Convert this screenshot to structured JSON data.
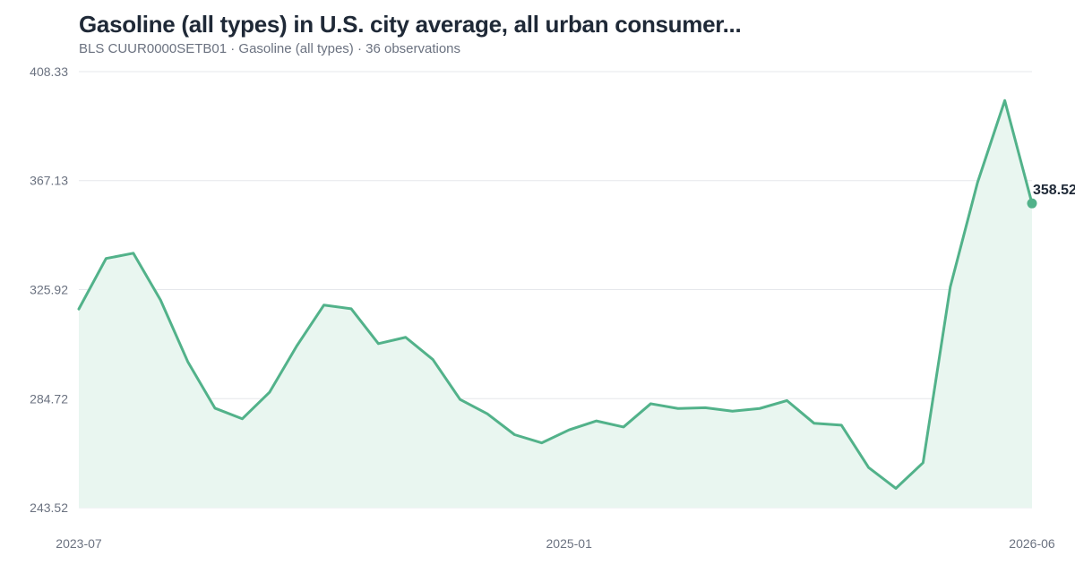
{
  "header": {
    "title": "Gasoline (all types) in U.S. city average, all urban consumer...",
    "subtitle": "BLS CUUR0000SETB01 · Gasoline (all types) · 36 observations"
  },
  "colors": {
    "line": "#52b28a",
    "area": "#e9f6f0",
    "grid": "#e5e7eb",
    "text": "#1f2937",
    "muted": "#6b7280"
  },
  "chart_data": {
    "type": "area",
    "title": "Gasoline (all types) in U.S. city average, all urban consumer...",
    "subtitle": "BLS CUUR0000SETB01 · Gasoline (all types) · 36 observations",
    "xlabel": "",
    "ylabel": "",
    "x": [
      "2023-07",
      "2023-08",
      "2023-09",
      "2023-10",
      "2023-11",
      "2023-12",
      "2024-01",
      "2024-02",
      "2024-03",
      "2024-04",
      "2024-05",
      "2024-06",
      "2024-07",
      "2024-08",
      "2024-09",
      "2024-10",
      "2024-11",
      "2024-12",
      "2025-01",
      "2025-02",
      "2025-03",
      "2025-04",
      "2025-05",
      "2025-06",
      "2025-07",
      "2025-08",
      "2025-09",
      "2025-10",
      "2025-11",
      "2025-12",
      "2026-01",
      "2026-02",
      "2026-03",
      "2026-04",
      "2026-05",
      "2026-06"
    ],
    "series": [
      {
        "values": [
          318.6,
          337.7,
          339.7,
          322.0,
          298.7,
          281.1,
          277.1,
          287.1,
          304.6,
          320.1,
          318.7,
          305.5,
          307.9,
          299.5,
          284.4,
          279.0,
          271.1,
          268.0,
          272.9,
          276.3,
          274.0,
          282.8,
          281.0,
          281.3,
          280.0,
          281.0,
          284.0,
          275.4,
          274.7,
          258.7,
          250.8,
          260.5,
          327.0,
          366.4,
          397.4,
          358.52
        ]
      }
    ],
    "x_ticks": [
      "2023-07",
      "2025-01",
      "2026-06"
    ],
    "y_ticks": [
      "408.33",
      "367.13",
      "325.92",
      "284.72",
      "243.52"
    ],
    "ylim": [
      243.52,
      408.33
    ],
    "end_label": "358.52",
    "grid": "horizontal",
    "legend": "none"
  }
}
